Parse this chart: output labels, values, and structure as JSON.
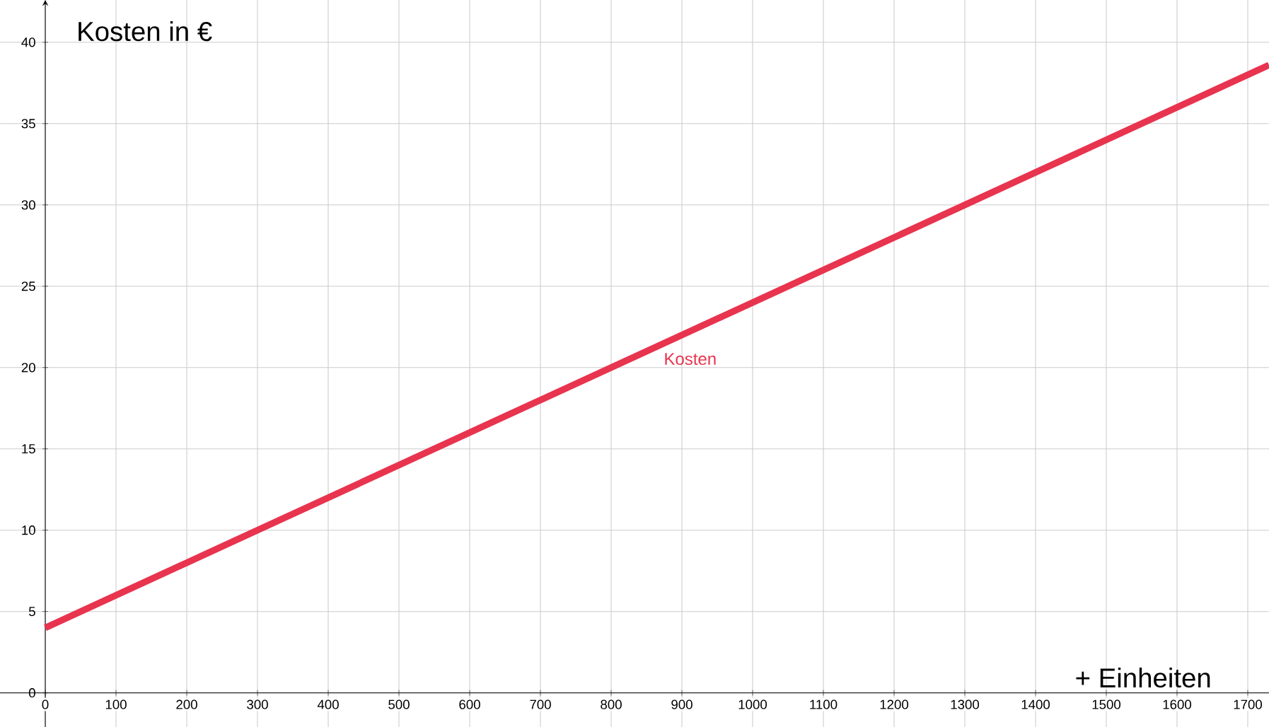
{
  "chart_data": {
    "type": "line",
    "ylabel": "Kosten in €",
    "xlabel": "+ Einheiten",
    "x": [
      0,
      1730
    ],
    "series": [
      {
        "name": "Kosten",
        "color": "#e8344e",
        "values": [
          4,
          38.6
        ]
      }
    ],
    "xlim": [
      -64,
      1730
    ],
    "ylim": [
      -2.1,
      42.6
    ],
    "xticks": [
      0,
      100,
      200,
      300,
      400,
      500,
      600,
      700,
      800,
      900,
      1000,
      1100,
      1200,
      1300,
      1400,
      1500,
      1600,
      1700
    ],
    "yticks": [
      0,
      5,
      10,
      15,
      20,
      25,
      30,
      35,
      40
    ],
    "grid": true,
    "marker": "none"
  }
}
